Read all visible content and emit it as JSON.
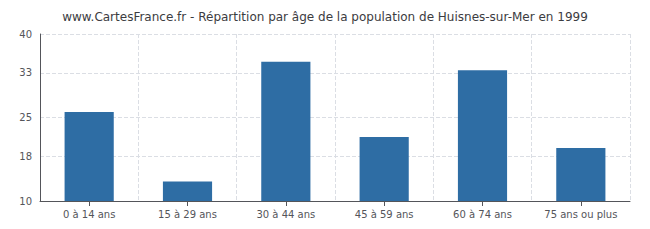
{
  "chart_data": {
    "type": "bar",
    "title": "www.CartesFrance.fr - Répartition par âge de la population de Huisnes-sur-Mer en 1999",
    "categories": [
      "0 à 14 ans",
      "15 à 29 ans",
      "30 à 44 ans",
      "45 à 59 ans",
      "60 à 74 ans",
      "75 ans ou plus"
    ],
    "values": [
      26.0,
      13.5,
      35.0,
      21.5,
      33.5,
      19.5
    ],
    "color": "#2e6da4",
    "ylim": [
      10,
      40
    ],
    "yticks": [
      10,
      18,
      25,
      33,
      40
    ],
    "grid": true
  }
}
